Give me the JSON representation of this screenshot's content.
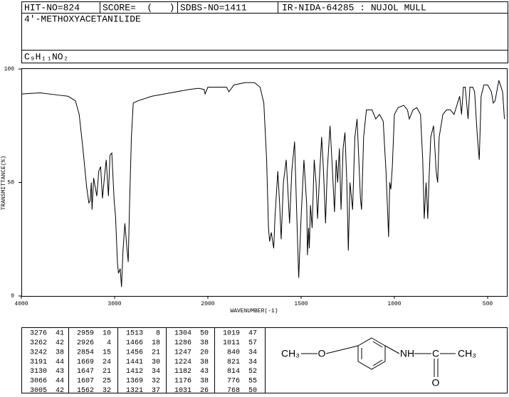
{
  "header": {
    "hit_no": "HIT-NO=824",
    "score": "SCORE=  (   )",
    "sdbs_no": "SDBS-NO=1411",
    "method": "IR-NIDA-64285 : NUJOL MULL",
    "name": "4'-METHOXYACETANILIDE",
    "formula": "C₉H₁₁NO₂"
  },
  "chart_data": {
    "type": "line",
    "xlabel": "WAVENUMBER(-1)",
    "ylabel": "TRANSMITTANCE(%)",
    "xlim": [
      4000,
      400
    ],
    "xticks": [
      4000,
      3000,
      2000,
      1500,
      1000,
      500
    ],
    "ylim": [
      0,
      100
    ],
    "yticks": [
      0,
      50,
      100
    ],
    "x": [
      4000,
      3800,
      3600,
      3500,
      3420,
      3380,
      3340,
      3300,
      3276,
      3262,
      3250,
      3242,
      3225,
      3191,
      3170,
      3150,
      3130,
      3110,
      3090,
      3066,
      3050,
      3030,
      3005,
      2990,
      2970,
      2959,
      2940,
      2926,
      2910,
      2890,
      2870,
      2854,
      2840,
      2820,
      2800,
      2750,
      2600,
      2400,
      2200,
      2100,
      2040,
      2030,
      2000,
      1900,
      1887,
      1860,
      1800,
      1750,
      1720,
      1700,
      1685,
      1675,
      1669,
      1660,
      1647,
      1640,
      1625,
      1615,
      1607,
      1595,
      1580,
      1570,
      1562,
      1550,
      1535,
      1525,
      1513,
      1500,
      1485,
      1470,
      1466,
      1460,
      1456,
      1450,
      1441,
      1430,
      1420,
      1412,
      1400,
      1390,
      1380,
      1369,
      1360,
      1345,
      1335,
      1321,
      1312,
      1304,
      1295,
      1286,
      1275,
      1265,
      1255,
      1247,
      1238,
      1224,
      1212,
      1200,
      1188,
      1182,
      1176,
      1165,
      1150,
      1120,
      1100,
      1080,
      1060,
      1045,
      1031,
      1025,
      1019,
      1011,
      1000,
      980,
      950,
      930,
      920,
      900,
      880,
      860,
      848,
      840,
      830,
      821,
      814,
      805,
      790,
      776,
      768,
      760,
      740,
      720,
      700,
      680,
      650,
      640,
      630,
      620,
      605,
      595,
      580,
      570,
      555,
      545,
      535,
      520,
      500,
      480,
      470,
      460,
      440,
      420,
      410
    ],
    "series": [
      {
        "name": "spectrum",
        "color": "#000000",
        "values": [
          89,
          89.5,
          88.5,
          88,
          86,
          80,
          65,
          48,
          41,
          42,
          50,
          38,
          52,
          44,
          55,
          57,
          43,
          52,
          60,
          44,
          62,
          63,
          42,
          35,
          15,
          10,
          12,
          4,
          20,
          32,
          22,
          15,
          40,
          70,
          85,
          86,
          88,
          89.5,
          91,
          91.5,
          91,
          89,
          92,
          92,
          90,
          93,
          94,
          94,
          92,
          85,
          60,
          30,
          24,
          28,
          21,
          35,
          55,
          40,
          25,
          50,
          60,
          45,
          32,
          55,
          68,
          40,
          8,
          35,
          60,
          40,
          18,
          30,
          21,
          40,
          30,
          60,
          50,
          34,
          55,
          70,
          55,
          32,
          55,
          75,
          60,
          37,
          60,
          50,
          65,
          38,
          65,
          72,
          50,
          20,
          50,
          38,
          70,
          78,
          55,
          43,
          38,
          70,
          82,
          82,
          78,
          80,
          77,
          55,
          26,
          50,
          47,
          57,
          80,
          83,
          84,
          82,
          78,
          82,
          83,
          80,
          60,
          34,
          50,
          34,
          52,
          70,
          75,
          55,
          50,
          70,
          80,
          82,
          82,
          80,
          88,
          80,
          92,
          92,
          78,
          92,
          92,
          90,
          70,
          60,
          88,
          93,
          93,
          90,
          85,
          86,
          95,
          90,
          78
        ]
      }
    ]
  },
  "peak_table": [
    [
      [
        3276,
        41
      ],
      [
        3262,
        42
      ],
      [
        3242,
        38
      ],
      [
        3191,
        44
      ],
      [
        3130,
        43
      ],
      [
        3066,
        44
      ],
      [
        3005,
        42
      ]
    ],
    [
      [
        2959,
        10
      ],
      [
        2926,
        4
      ],
      [
        2854,
        15
      ],
      [
        1669,
        24
      ],
      [
        1647,
        21
      ],
      [
        1607,
        25
      ],
      [
        1562,
        32
      ]
    ],
    [
      [
        1513,
        8
      ],
      [
        1466,
        18
      ],
      [
        1456,
        21
      ],
      [
        1441,
        30
      ],
      [
        1412,
        34
      ],
      [
        1369,
        32
      ],
      [
        1321,
        37
      ]
    ],
    [
      [
        1304,
        50
      ],
      [
        1286,
        38
      ],
      [
        1247,
        20
      ],
      [
        1224,
        38
      ],
      [
        1182,
        43
      ],
      [
        1176,
        38
      ],
      [
        1031,
        26
      ]
    ],
    [
      [
        1019,
        47
      ],
      [
        1011,
        57
      ],
      [
        840,
        34
      ],
      [
        821,
        34
      ],
      [
        814,
        52
      ],
      [
        776,
        55
      ],
      [
        768,
        50
      ]
    ]
  ],
  "structure": {
    "left_methyl": "CH₃",
    "ether_o": "O",
    "amine": "NH",
    "carbonyl_c": "C",
    "carbonyl_o": "O",
    "right_methyl": "CH₃"
  }
}
